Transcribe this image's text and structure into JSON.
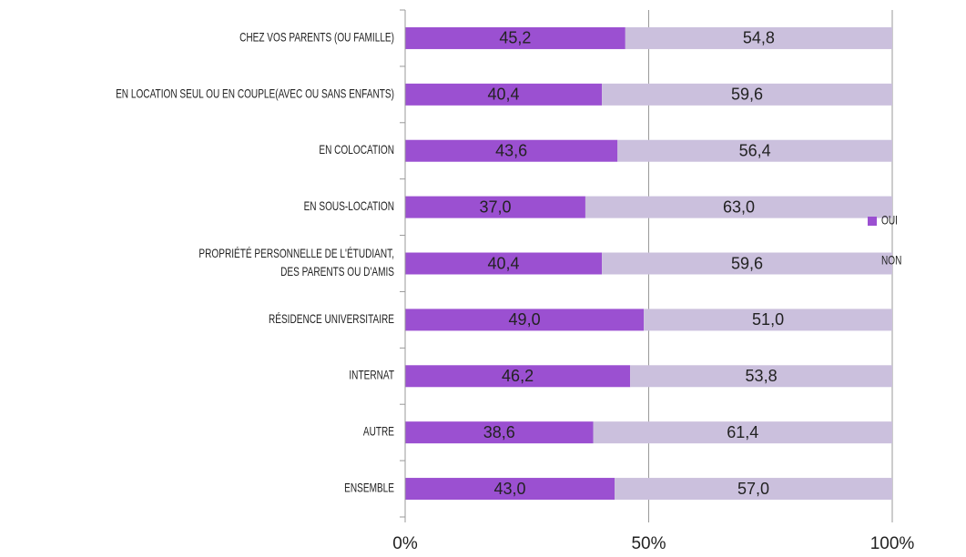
{
  "chart_data": {
    "type": "stacked_barh",
    "categories": [
      "CHEZ VOS PARENTS (OU FAMILLE)",
      "EN LOCATION SEUL OU EN COUPLE(AVEC OU SANS ENFANTS)",
      "EN COLOCATION",
      "EN SOUS-LOCATION",
      "PROPRIÉTÉ PERSONNELLE DE L'ÉTUDIANT,\nDES PARENTS OU D'AMIS",
      "RÉSIDENCE UNIVERSITAIRE",
      "INTERNAT",
      "AUTRE",
      "ENSEMBLE"
    ],
    "series": [
      {
        "name": "OUI",
        "color": "#9b50d1",
        "values": [
          45.2,
          40.4,
          43.6,
          37.0,
          40.4,
          49.0,
          46.2,
          38.6,
          43.0
        ],
        "value_labels": [
          "45,2",
          "40,4",
          "43,6",
          "37,0",
          "40,4",
          "49,0",
          "46,2",
          "38,6",
          "43,0"
        ]
      },
      {
        "name": "NON",
        "color": "#cbc0dd",
        "values": [
          54.8,
          59.6,
          56.4,
          63.0,
          59.6,
          51.0,
          53.8,
          61.4,
          57.0
        ],
        "value_labels": [
          "54,8",
          "59,6",
          "56,4",
          "63,0",
          "59,6",
          "51,0",
          "53,8",
          "61,4",
          "57,0"
        ]
      }
    ],
    "xlim": [
      0,
      100
    ],
    "xticks": [
      {
        "value": 0,
        "label": "0%"
      },
      {
        "value": 50,
        "label": "50%"
      },
      {
        "value": 100,
        "label": "100%"
      }
    ],
    "grid": true,
    "legend": "right"
  }
}
